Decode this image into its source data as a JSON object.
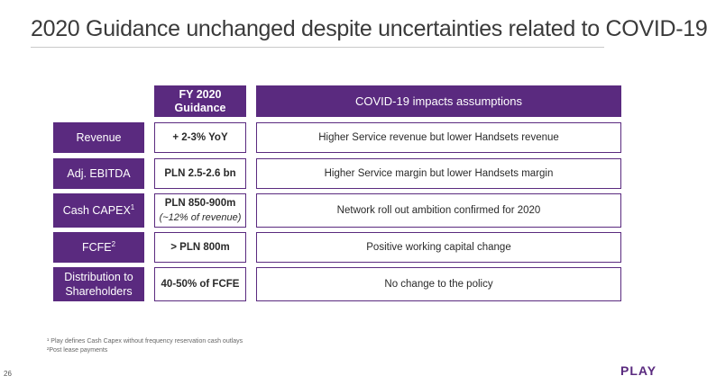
{
  "title": "2020 Guidance unchanged despite uncertainties related to COVID-19",
  "headers": {
    "guidance_line1": "FY 2020",
    "guidance_line2": "Guidance",
    "covid": "COVID-19 impacts assumptions"
  },
  "rows": [
    {
      "label": "Revenue",
      "guidance": "+ 2-3% YoY",
      "impact": "Higher Service revenue but lower Handsets revenue"
    },
    {
      "label": "Adj. EBITDA",
      "guidance": "PLN 2.5-2.6 bn",
      "impact": "Higher Service margin but lower Handsets margin"
    },
    {
      "label": "Cash CAPEX",
      "label_sup": "1",
      "guidance": "PLN 850-900m",
      "guidance_sub": "(~12% of revenue)",
      "impact": "Network roll out ambition confirmed for 2020"
    },
    {
      "label": "FCFE",
      "label_sup": "2",
      "guidance": "> PLN 800m",
      "impact": "Positive working capital change"
    },
    {
      "label_line1": "Distribution to",
      "label_line2": "Shareholders",
      "guidance": "40-50% of FCFE",
      "impact": "No change to the policy"
    }
  ],
  "footnotes": {
    "note1": "¹ Play defines Cash Capex without frequency reservation cash outlays",
    "note2": "²Post lease payments"
  },
  "page_number": "26",
  "logo": "PLAY",
  "colors": {
    "accent": "#5a2a7f"
  }
}
